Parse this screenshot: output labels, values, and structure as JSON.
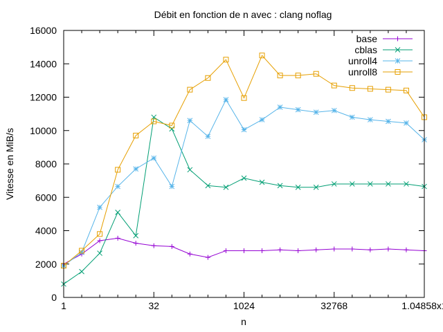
{
  "chart_data": {
    "type": "line",
    "title": "Débit en fonction de n avec :  clang noflag",
    "xlabel": "n",
    "ylabel": "Vitesse en MiB/s",
    "x_scale": "log2",
    "xlim": [
      1,
      1048576
    ],
    "ylim": [
      0,
      16000
    ],
    "x_ticks": [
      1,
      32,
      1024,
      32768,
      1048576
    ],
    "x_tick_labels": [
      "1",
      "32",
      "1024",
      "32768",
      "1.04858x1"
    ],
    "y_ticks": [
      0,
      2000,
      4000,
      6000,
      8000,
      10000,
      12000,
      14000,
      16000
    ],
    "y_tick_labels": [
      "0",
      "2000",
      "4000",
      "6000",
      "8000",
      "10000",
      "12000",
      "14000",
      "16000"
    ],
    "x": [
      1,
      2,
      4,
      8,
      16,
      32,
      64,
      128,
      256,
      512,
      1024,
      2048,
      4096,
      8192,
      16384,
      32768,
      65536,
      131072,
      262144,
      524288,
      1048576
    ],
    "series": [
      {
        "name": "base",
        "color": "#9400d3",
        "marker": "plus",
        "values": [
          2000,
          2600,
          3400,
          3550,
          3250,
          3100,
          3050,
          2600,
          2400,
          2800,
          2800,
          2800,
          2850,
          2800,
          2850,
          2900,
          2900,
          2850,
          2900,
          2850,
          2800
        ]
      },
      {
        "name": "cblas",
        "color": "#009e73",
        "marker": "cross",
        "values": [
          800,
          1550,
          2650,
          5100,
          3700,
          10800,
          10100,
          7650,
          6700,
          6600,
          7150,
          6900,
          6700,
          6600,
          6600,
          6800,
          6800,
          6800,
          6800,
          6800,
          6650
        ]
      },
      {
        "name": "unroll4",
        "color": "#56b4e9",
        "marker": "star",
        "values": [
          1900,
          2700,
          5400,
          6650,
          7700,
          8350,
          6650,
          10600,
          9650,
          11850,
          10050,
          10650,
          11400,
          11250,
          11100,
          11200,
          10800,
          10650,
          10550,
          10450,
          9450
        ]
      },
      {
        "name": "unroll8",
        "color": "#e69f00",
        "marker": "square",
        "values": [
          1900,
          2800,
          3800,
          7650,
          9700,
          10550,
          10300,
          12450,
          13150,
          14250,
          11950,
          14500,
          13300,
          13300,
          13400,
          12700,
          12550,
          12500,
          12450,
          12400,
          10800
        ]
      }
    ],
    "grid": false,
    "legend_position": "top-right"
  }
}
